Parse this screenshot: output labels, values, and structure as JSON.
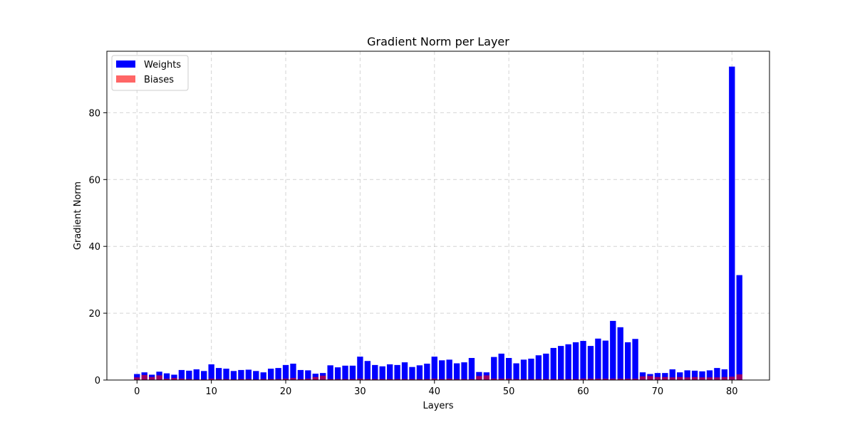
{
  "chart_data": {
    "type": "bar",
    "title": "Gradient Norm per Layer",
    "xlabel": "Layers",
    "ylabel": "Gradient Norm",
    "xlim": [
      -4.05,
      85.05
    ],
    "ylim": [
      0,
      98.4
    ],
    "xticks": [
      0,
      10,
      20,
      30,
      40,
      50,
      60,
      70,
      80
    ],
    "yticks": [
      0,
      20,
      40,
      60,
      80
    ],
    "grid": true,
    "legend_position": "top-left",
    "x": [
      0,
      1,
      2,
      3,
      4,
      5,
      6,
      7,
      8,
      9,
      10,
      11,
      12,
      13,
      14,
      15,
      16,
      17,
      18,
      19,
      20,
      21,
      22,
      23,
      24,
      25,
      26,
      27,
      28,
      29,
      30,
      31,
      32,
      33,
      34,
      35,
      36,
      37,
      38,
      39,
      40,
      41,
      42,
      43,
      44,
      45,
      46,
      47,
      48,
      49,
      50,
      51,
      52,
      53,
      54,
      55,
      56,
      57,
      58,
      59,
      60,
      61,
      62,
      63,
      64,
      65,
      66,
      67,
      68,
      69,
      70,
      71,
      72,
      73,
      74,
      75,
      76,
      77,
      78,
      79,
      80,
      81
    ],
    "series": [
      {
        "name": "Weights",
        "color": "#0000ff",
        "values": [
          1.8,
          2.3,
          1.6,
          2.5,
          2.0,
          1.6,
          3.0,
          2.8,
          3.2,
          2.7,
          4.7,
          3.6,
          3.4,
          2.7,
          3.0,
          3.1,
          2.7,
          2.3,
          3.4,
          3.6,
          4.5,
          4.9,
          3.0,
          2.9,
          1.9,
          2.1,
          4.4,
          3.8,
          4.3,
          4.3,
          7.0,
          5.7,
          4.5,
          4.1,
          4.7,
          4.5,
          5.3,
          3.9,
          4.4,
          4.9,
          7.0,
          5.9,
          6.1,
          5.0,
          5.3,
          6.6,
          2.4,
          2.3,
          6.9,
          7.9,
          6.6,
          5.0,
          6.1,
          6.4,
          7.4,
          7.9,
          9.6,
          10.2,
          10.7,
          11.3,
          11.7,
          10.2,
          12.4,
          11.8,
          17.7,
          15.8,
          11.3,
          12.3,
          2.3,
          1.8,
          2.1,
          2.1,
          3.2,
          2.3,
          2.9,
          2.8,
          2.6,
          2.9,
          3.6,
          3.2,
          93.8,
          31.4
        ]
      },
      {
        "name": "Biases",
        "color": "#ff0000",
        "values": [
          0.8,
          1.5,
          0.9,
          1.4,
          0.4,
          0.6,
          0.4,
          0.3,
          0.2,
          0.2,
          0.4,
          0.3,
          0.3,
          0.2,
          0.3,
          0.3,
          0.2,
          0.3,
          0.3,
          0.3,
          0.4,
          0.6,
          0.3,
          0.4,
          0.9,
          1.3,
          0.3,
          0.3,
          0.3,
          0.3,
          0.4,
          0.3,
          0.3,
          0.3,
          0.3,
          0.3,
          0.3,
          0.3,
          0.3,
          0.3,
          0.4,
          0.3,
          0.4,
          0.3,
          0.3,
          0.3,
          1.2,
          1.4,
          0.4,
          0.4,
          0.4,
          0.3,
          0.3,
          0.3,
          0.3,
          0.3,
          0.3,
          0.3,
          0.3,
          0.3,
          0.4,
          0.4,
          0.4,
          0.4,
          0.4,
          0.4,
          0.4,
          0.4,
          1.1,
          1.2,
          0.9,
          0.9,
          0.8,
          0.9,
          0.8,
          0.9,
          0.8,
          0.8,
          0.8,
          0.9,
          1.0,
          1.7
        ]
      }
    ]
  }
}
